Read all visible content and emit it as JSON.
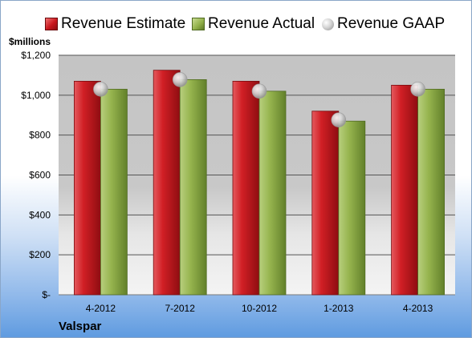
{
  "legend": [
    {
      "label": "Revenue Estimate",
      "swatch": "red"
    },
    {
      "label": "Revenue Actual",
      "swatch": "green"
    },
    {
      "label": "Revenue GAAP",
      "swatch": "gaap"
    }
  ],
  "units_label": "$millions",
  "company": "Valspar",
  "colors": {
    "estimate": "#c8161c",
    "actual": "#93b24b",
    "gaap": "#c8c8c8",
    "plot_background": "#c8c8c8"
  },
  "chart_data": {
    "type": "bar",
    "categories": [
      "4-2012",
      "7-2012",
      "10-2012",
      "1-2013",
      "4-2013"
    ],
    "series": [
      {
        "name": "Revenue Estimate",
        "values": [
          1070,
          1125,
          1070,
          920,
          1050
        ]
      },
      {
        "name": "Revenue Actual",
        "values": [
          1030,
          1078,
          1020,
          870,
          1030
        ]
      },
      {
        "name": "Revenue GAAP",
        "values": [
          1030,
          1078,
          1020,
          876,
          1030
        ]
      }
    ],
    "ylabel": "$millions",
    "ylim": [
      0,
      1200
    ],
    "yticks": [
      0,
      200,
      400,
      600,
      800,
      1000,
      1200
    ],
    "ytick_labels": [
      "$-",
      "$200",
      "$400",
      "$600",
      "$800",
      "$1,000",
      "$1,200"
    ],
    "grid": true,
    "legend_position": "top"
  }
}
